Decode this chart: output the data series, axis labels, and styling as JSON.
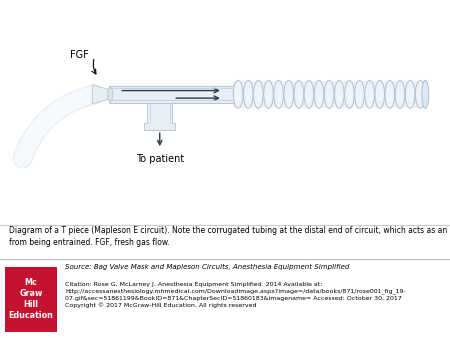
{
  "bg_color": "#ffffff",
  "caption_text": "Diagram of a T piece (Mapleson E circuit). Note the corrugated tubing at the distal end of circuit, which acts as an oxygen reservoir and keeps room air\nfrom being entrained. FGF, fresh gas flow.",
  "source_line1": "Source: Bag Valve Mask and Mapleson Circuits, Anesthesia Equipment Simplified",
  "source_line2": "Citation: Rose G, McLarney J. Anesthesia Equipment Simplified. 2014 Available at:\nhttp://accessanesthesiology.mhmedical.com/Downloadimage.aspx?image=/data/books/871/rose001_fig_19-\n07.gif&sec=51861199&BookID=871&ChapterSecID=51860183&imagename= Accessed: October 30, 2017\nCopyright © 2017 McGraw-Hill Education. All rights reserved",
  "tube_color": "#e8eef5",
  "tube_edge": "#b8c8d8",
  "tube_inner": "#dce6f0",
  "corr_color": "#dde8f2",
  "corr_edge": "#b0c4d8",
  "arrow_color": "#2a3a4a",
  "label_fgf": "FGF",
  "label_patient": "To patient",
  "mcgraw_red": "#c41230",
  "mcgraw_text": "Mc\nGraw\nHill\nEducation",
  "caption_fontsize": 5.5,
  "footer_fontsize_source": 5.0,
  "footer_fontsize_rest": 4.5
}
